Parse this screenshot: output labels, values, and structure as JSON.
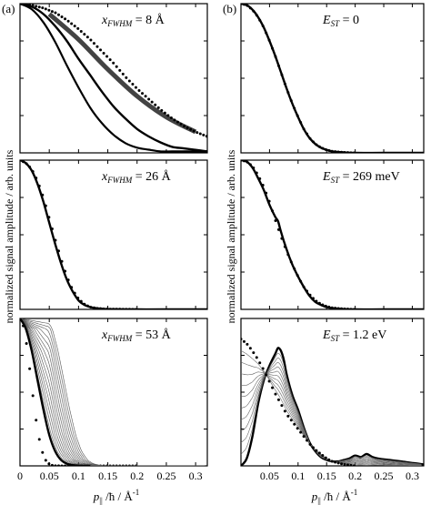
{
  "figure": {
    "panel_a_label": "(a)",
    "panel_b_label": "(b)",
    "ylabel": "normalized signal amplitude / arb. units",
    "xlabel": {
      "p": "p",
      "sub": "||",
      "mid": " /ħ  / Å",
      "sup": "-1"
    }
  },
  "chart_data": [
    {
      "type": "line",
      "panel": "a",
      "row": 1,
      "annotation": {
        "var": "x",
        "sub": "FWHM",
        "rest": " = 8 Å"
      },
      "xlim": [
        0,
        0.32
      ],
      "ylim": [
        0,
        1
      ],
      "series": [
        {
          "style": "solid-thick",
          "width": 0.105,
          "x": [
            0,
            0.02,
            0.04,
            0.06,
            0.08,
            0.1,
            0.12,
            0.14,
            0.16,
            0.18,
            0.2,
            0.22,
            0.24,
            0.26,
            0.28,
            0.3,
            0.32
          ],
          "y": [
            1,
            0.98,
            0.93,
            0.85,
            0.75,
            0.63,
            0.52,
            0.41,
            0.31,
            0.23,
            0.16,
            0.11,
            0.07,
            0.04,
            0.03,
            0.02,
            0.01
          ]
        },
        {
          "style": "band",
          "x": [
            0.05,
            0.1,
            0.15,
            0.2,
            0.25,
            0.3
          ],
          "y": [
            0.93,
            0.76,
            0.56,
            0.38,
            0.24,
            0.14
          ]
        },
        {
          "style": "dotted",
          "x": [
            0,
            0.02,
            0.04,
            0.06,
            0.08,
            0.1,
            0.12,
            0.14,
            0.16,
            0.18,
            0.2,
            0.22,
            0.24,
            0.26,
            0.28,
            0.3,
            0.32
          ],
          "y": [
            1,
            0.99,
            0.97,
            0.94,
            0.89,
            0.83,
            0.76,
            0.68,
            0.6,
            0.51,
            0.43,
            0.36,
            0.29,
            0.23,
            0.18,
            0.14,
            0.11
          ]
        }
      ]
    },
    {
      "type": "line",
      "panel": "a",
      "row": 2,
      "annotation": {
        "var": "x",
        "sub": "FWHM",
        "rest": " = 26 Å"
      },
      "xlim": [
        0,
        0.32
      ],
      "ylim": [
        0,
        1
      ],
      "series": [
        {
          "style": "solid-thick",
          "x": [
            0,
            0.01,
            0.02,
            0.03,
            0.04,
            0.05,
            0.06,
            0.07,
            0.08,
            0.09,
            0.1,
            0.11,
            0.12,
            0.13,
            0.14,
            0.15,
            0.2,
            0.25,
            0.32
          ],
          "y": [
            1,
            0.98,
            0.93,
            0.84,
            0.72,
            0.58,
            0.44,
            0.31,
            0.2,
            0.12,
            0.06,
            0.03,
            0.015,
            0.008,
            0.004,
            0.002,
            0,
            0,
            0
          ]
        },
        {
          "style": "dotted",
          "x": [
            0,
            0.01,
            0.02,
            0.03,
            0.04,
            0.05,
            0.06,
            0.07,
            0.08,
            0.09,
            0.1,
            0.11,
            0.12,
            0.13,
            0.14,
            0.15,
            0.2,
            0.25,
            0.32
          ],
          "y": [
            1,
            0.98,
            0.94,
            0.86,
            0.75,
            0.61,
            0.47,
            0.34,
            0.22,
            0.13,
            0.07,
            0.035,
            0.015,
            0.008,
            0.004,
            0.002,
            0,
            0,
            0
          ]
        }
      ]
    },
    {
      "type": "line",
      "panel": "a",
      "row": 3,
      "annotation": {
        "var": "x",
        "sub": "FWHM",
        "rest": " = 53 Å"
      },
      "xlim": [
        0,
        0.32
      ],
      "ylim": [
        0,
        1
      ],
      "xticks": [
        0,
        0.05,
        0.1,
        0.15,
        0.2,
        0.25,
        0.3
      ],
      "xticklabels": [
        "0",
        "0.05",
        "0.1",
        "0.15",
        "0.2",
        "0.25",
        "0.3"
      ],
      "series": [
        {
          "style": "dotted",
          "x": [
            0,
            0.005,
            0.01,
            0.015,
            0.02,
            0.025,
            0.03,
            0.035,
            0.04,
            0.045,
            0.05,
            0.055,
            0.06,
            0.07
          ],
          "y": [
            1,
            0.96,
            0.86,
            0.71,
            0.54,
            0.38,
            0.24,
            0.14,
            0.07,
            0.03,
            0.012,
            0.004,
            0.001,
            0
          ]
        },
        {
          "style": "family",
          "count": 14,
          "x_shift_max": 0.045
        },
        {
          "style": "solid-thick",
          "x": [
            0,
            0.01,
            0.02,
            0.03,
            0.04,
            0.05,
            0.06,
            0.07,
            0.08,
            0.09,
            0.1,
            0.12
          ],
          "y": [
            1,
            0.93,
            0.78,
            0.58,
            0.38,
            0.21,
            0.1,
            0.04,
            0.015,
            0.005,
            0.001,
            0
          ]
        }
      ]
    },
    {
      "type": "line",
      "panel": "b",
      "row": 1,
      "annotation": {
        "var": "E",
        "sub": "ST",
        "rest": " = 0"
      },
      "xlim": [
        0,
        0.32
      ],
      "ylim": [
        0,
        1
      ],
      "series": [
        {
          "style": "solid-thick",
          "x": [
            0,
            0.01,
            0.02,
            0.03,
            0.04,
            0.05,
            0.06,
            0.07,
            0.08,
            0.09,
            0.1,
            0.11,
            0.12,
            0.13,
            0.14,
            0.15,
            0.16,
            0.18,
            0.2,
            0.25,
            0.32
          ],
          "y": [
            1,
            0.99,
            0.96,
            0.91,
            0.84,
            0.75,
            0.65,
            0.54,
            0.43,
            0.33,
            0.24,
            0.16,
            0.1,
            0.06,
            0.035,
            0.02,
            0.01,
            0.003,
            0,
            0,
            0
          ]
        },
        {
          "style": "dotted",
          "x": [
            0,
            0.01,
            0.02,
            0.03,
            0.04,
            0.05,
            0.06,
            0.07,
            0.08,
            0.09,
            0.1,
            0.11,
            0.12,
            0.13,
            0.14,
            0.15,
            0.16,
            0.18,
            0.2,
            0.25,
            0.32
          ],
          "y": [
            1,
            0.99,
            0.96,
            0.91,
            0.84,
            0.75,
            0.65,
            0.54,
            0.43,
            0.33,
            0.24,
            0.16,
            0.1,
            0.06,
            0.035,
            0.02,
            0.01,
            0.003,
            0,
            0,
            0
          ]
        }
      ]
    },
    {
      "type": "line",
      "panel": "b",
      "row": 2,
      "annotation": {
        "var": "E",
        "sub": "ST",
        "rest": " = 269 meV"
      },
      "xlim": [
        0,
        0.32
      ],
      "ylim": [
        0,
        1
      ],
      "series": [
        {
          "style": "solid-thick",
          "x": [
            0,
            0.01,
            0.02,
            0.03,
            0.04,
            0.05,
            0.06,
            0.065,
            0.07,
            0.08,
            0.09,
            0.1,
            0.11,
            0.12,
            0.13,
            0.14,
            0.15,
            0.16,
            0.18,
            0.2,
            0.25,
            0.32
          ],
          "y": [
            1,
            0.99,
            0.95,
            0.88,
            0.8,
            0.7,
            0.62,
            0.59,
            0.52,
            0.4,
            0.3,
            0.22,
            0.15,
            0.09,
            0.05,
            0.03,
            0.015,
            0.008,
            0.002,
            0,
            0,
            0
          ]
        },
        {
          "style": "dotted",
          "x": [
            0,
            0.01,
            0.02,
            0.03,
            0.04,
            0.05,
            0.06,
            0.07,
            0.08,
            0.09,
            0.1,
            0.11,
            0.12,
            0.13,
            0.14,
            0.15,
            0.16,
            0.18,
            0.2,
            0.25,
            0.32
          ],
          "y": [
            1,
            0.99,
            0.96,
            0.9,
            0.82,
            0.72,
            0.6,
            0.49,
            0.39,
            0.3,
            0.22,
            0.15,
            0.1,
            0.06,
            0.035,
            0.02,
            0.01,
            0.003,
            0,
            0,
            0
          ]
        }
      ]
    },
    {
      "type": "line",
      "panel": "b",
      "row": 3,
      "annotation": {
        "var": "E",
        "sub": "ST",
        "rest": " = 1.2 eV"
      },
      "xlim": [
        0,
        0.32
      ],
      "ylim": [
        0,
        1
      ],
      "xticks": [
        0.05,
        0.1,
        0.15,
        0.2,
        0.25,
        0.3
      ],
      "xticklabels": [
        "0.05",
        "0.1",
        "0.15",
        "0.2",
        "0.25",
        "0.3"
      ],
      "series": [
        {
          "style": "solid-thick",
          "x": [
            0,
            0.01,
            0.02,
            0.03,
            0.04,
            0.05,
            0.06,
            0.065,
            0.07,
            0.075,
            0.08,
            0.09,
            0.1,
            0.11,
            0.12,
            0.13,
            0.14,
            0.15,
            0.16,
            0.17,
            0.18,
            0.19,
            0.2,
            0.21,
            0.22,
            0.23,
            0.24,
            0.26,
            0.28,
            0.3,
            0.32
          ],
          "y": [
            0,
            0.05,
            0.2,
            0.42,
            0.58,
            0.68,
            0.76,
            0.8,
            0.78,
            0.72,
            0.62,
            0.48,
            0.38,
            0.26,
            0.16,
            0.1,
            0.06,
            0.04,
            0.03,
            0.03,
            0.04,
            0.05,
            0.07,
            0.06,
            0.08,
            0.06,
            0.05,
            0.04,
            0.03,
            0.02,
            0.01
          ]
        },
        {
          "style": "family-b",
          "count": 10
        },
        {
          "style": "dotted",
          "x": [
            0,
            0.01,
            0.02,
            0.03,
            0.04,
            0.05,
            0.06,
            0.07,
            0.08,
            0.09,
            0.1,
            0.11,
            0.12,
            0.13,
            0.14,
            0.15,
            0.16,
            0.18,
            0.2,
            0.25,
            0.32
          ],
          "y": [
            0.86,
            0.83,
            0.78,
            0.72,
            0.65,
            0.57,
            0.49,
            0.42,
            0.35,
            0.3,
            0.25,
            0.2,
            0.15,
            0.11,
            0.08,
            0.05,
            0.03,
            0.01,
            0,
            0,
            0
          ]
        }
      ]
    }
  ]
}
